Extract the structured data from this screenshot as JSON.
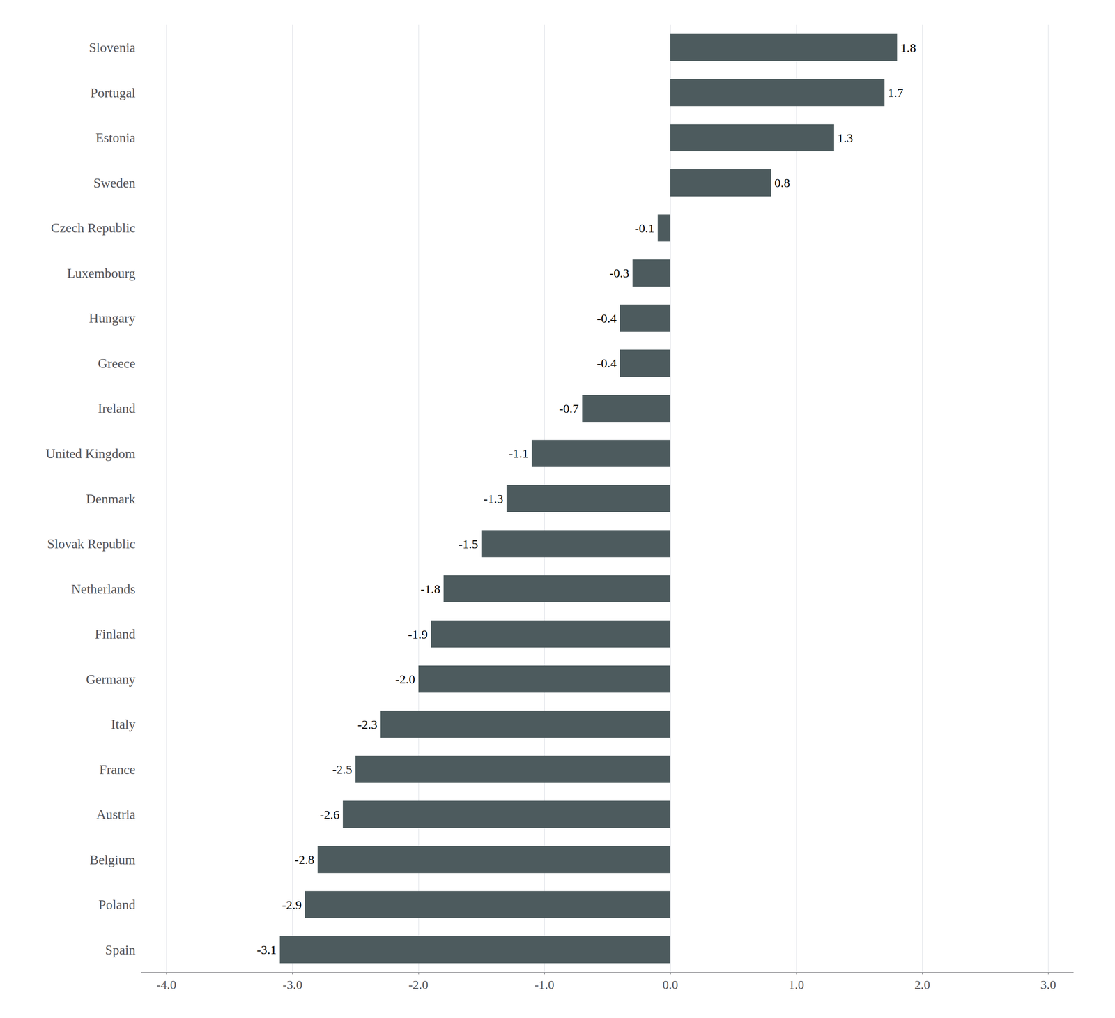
{
  "chart_data": {
    "type": "bar",
    "orientation": "horizontal",
    "categories": [
      "Slovenia",
      "Portugal",
      "Estonia",
      "Sweden",
      "Czech Republic",
      "Luxembourg",
      "Hungary",
      "Greece",
      "Ireland",
      "United Kingdom",
      "Denmark",
      "Slovak Republic",
      "Netherlands",
      "Finland",
      "Germany",
      "Italy",
      "France",
      "Austria",
      "Belgium",
      "Poland",
      "Spain"
    ],
    "values": [
      1.8,
      1.7,
      1.3,
      0.8,
      -0.1,
      -0.3,
      -0.4,
      -0.4,
      -0.7,
      -1.1,
      -1.3,
      -1.5,
      -1.8,
      -1.9,
      -2.0,
      -2.3,
      -2.5,
      -2.6,
      -2.8,
      -2.9,
      -3.1
    ],
    "value_labels": [
      "1.8",
      "1.7",
      "1.3",
      "0.8",
      "-0.1",
      "-0.3",
      "-0.4",
      "-0.4",
      "-0.7",
      "-1.1",
      "-1.3",
      "-1.5",
      "-1.8",
      "-1.9",
      "-2.0",
      "-2.3",
      "-2.5",
      "-2.6",
      "-2.8",
      "-2.9",
      "-3.1"
    ],
    "data_labels": true,
    "color": "#4d5b5e",
    "xlim": [
      -4.2,
      3.2
    ],
    "xticks": [
      {
        "value": -4.0,
        "label": "-4.0"
      },
      {
        "value": -3.0,
        "label": "-3.0"
      },
      {
        "value": -2.0,
        "label": "-2.0"
      },
      {
        "value": -1.0,
        "label": "-1.0"
      },
      {
        "value": 0.0,
        "label": "0.0"
      },
      {
        "value": 1.0,
        "label": "1.0"
      },
      {
        "value": 2.0,
        "label": "2.0"
      },
      {
        "value": 3.0,
        "label": "3.0"
      }
    ],
    "grid": true
  }
}
